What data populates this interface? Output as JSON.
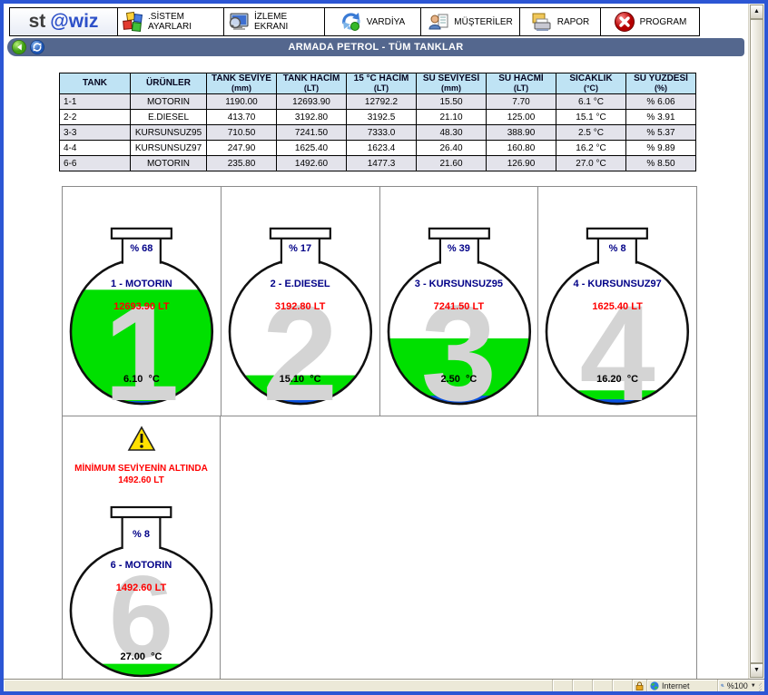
{
  "colors": {
    "green": "#00e000",
    "water": "#0a52e0",
    "titlebar": "#54678e",
    "header_bg": "#bfe3f4",
    "row_alt": "#e3e3eb",
    "value_red": "#ff0000",
    "label_navy": "#000087",
    "number_gray": "#d4d4d4",
    "window_border": "#2c56d4"
  },
  "toolbar": {
    "logo_st": "st",
    "logo_wiz": "@wiz",
    "buttons": [
      {
        "label": ".SİSTEM AYARLARI"
      },
      {
        "label": "İZLEME EKRANI"
      },
      {
        "label": "VARDİYA"
      },
      {
        "label": "MÜŞTERİLER"
      },
      {
        "label": "RAPOR"
      },
      {
        "label": "PROGRAM"
      }
    ]
  },
  "titlebar": {
    "title": "ARMADA PETROL - TÜM TANKLAR"
  },
  "table": {
    "headers": [
      {
        "label": "TANK",
        "unit": ""
      },
      {
        "label": "ÜRÜNLER",
        "unit": ""
      },
      {
        "label": "TANK SEVİYE",
        "unit": "(mm)"
      },
      {
        "label": "TANK HACİM",
        "unit": "(LT)"
      },
      {
        "label": "15 °C HACİM",
        "unit": "(LT)"
      },
      {
        "label": "SU SEVİYESİ",
        "unit": "(mm)"
      },
      {
        "label": "SU HACMİ",
        "unit": "(LT)"
      },
      {
        "label": "SICAKLIK",
        "unit": "(°C)"
      },
      {
        "label": "SU YÜZDESİ",
        "unit": "(%)"
      }
    ],
    "rows": [
      [
        "1-1",
        "MOTORIN",
        "1190.00",
        "12693.90",
        "12792.2",
        "15.50",
        "7.70",
        "6.1 °C",
        "% 6.06"
      ],
      [
        "2-2",
        "E.DIESEL",
        "413.70",
        "3192.80",
        "3192.5",
        "21.10",
        "125.00",
        "15.1 °C",
        "% 3.91"
      ],
      [
        "3-3",
        "KURSUNSUZ95",
        "710.50",
        "7241.50",
        "7333.0",
        "48.30",
        "388.90",
        "2.5 °C",
        "% 5.37"
      ],
      [
        "4-4",
        "KURSUNSUZ97",
        "247.90",
        "1625.40",
        "1623.4",
        "26.40",
        "160.80",
        "16.2 °C",
        "% 9.89"
      ],
      [
        "6-6",
        "MOTORIN",
        "235.80",
        "1492.60",
        "1477.3",
        "21.60",
        "126.90",
        "27.0 °C",
        "% 8.50"
      ]
    ]
  },
  "tanks": [
    {
      "number": "1",
      "percent": 68,
      "percent_label": "% 68",
      "name": "1 - MOTORIN",
      "volume": "12693.90 LT",
      "temp": "6.10  °C"
    },
    {
      "number": "2",
      "percent": 17,
      "percent_label": "% 17",
      "name": "2 - E.DIESEL",
      "volume": "3192.80 LT",
      "temp": "15.10  °C"
    },
    {
      "number": "3",
      "percent": 39,
      "percent_label": "% 39",
      "name": "3 - KURSUNSUZ95",
      "volume": "7241.50 LT",
      "temp": "2.50  °C"
    },
    {
      "number": "4",
      "percent": 8,
      "percent_label": "% 8",
      "name": "4 - KURSUNSUZ97",
      "volume": "1625.40 LT",
      "temp": "16.20  °C"
    },
    {
      "number": "6",
      "percent": 8,
      "percent_label": "% 8",
      "name": "6 - MOTORIN",
      "volume": "1492.60 LT",
      "temp": "27.00  °C",
      "warning": {
        "line1": "MİNİMUM SEVİYENİN ALTINDA",
        "line2": "1492.60 LT"
      }
    }
  ],
  "statusbar": {
    "internet": "Internet",
    "zoom": "%100"
  }
}
